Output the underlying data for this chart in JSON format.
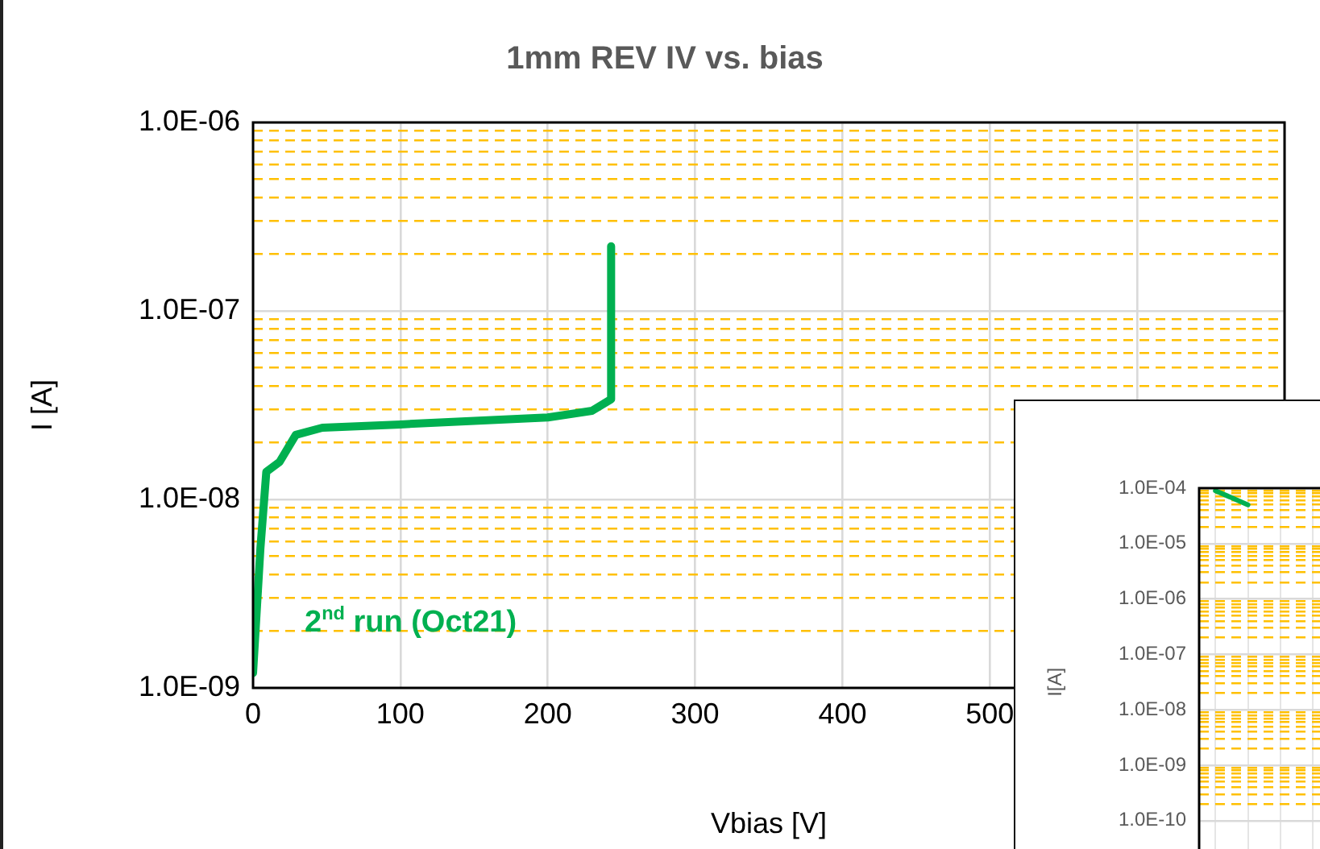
{
  "chart_data": [
    {
      "type": "line",
      "title": "1mm REV IV vs. bias",
      "xlabel": "Vbias [V]",
      "ylabel": "I [A]",
      "log": "y",
      "grid": true,
      "legend": false,
      "marker": "none",
      "line_style": "solid",
      "xlim": [
        0,
        700
      ],
      "xticks": [
        0,
        100,
        200,
        300,
        400,
        500,
        {
          "value": 600,
          "label": null
        },
        {
          "value": 700,
          "label": null
        }
      ],
      "ylim": [
        1e-09,
        1e-06
      ],
      "yticks": [
        {
          "value": 1e-09,
          "label": "1.0E-09"
        },
        {
          "value": 2e-09,
          "label": null
        },
        {
          "value": 3e-09,
          "label": null
        },
        {
          "value": 4e-09,
          "label": null
        },
        {
          "value": 5e-09,
          "label": null
        },
        {
          "value": 6e-09,
          "label": null
        },
        {
          "value": 7e-09,
          "label": null
        },
        {
          "value": 8e-09,
          "label": null
        },
        {
          "value": 9e-09,
          "label": null
        },
        {
          "value": 1e-08,
          "label": "1.0E-08"
        },
        {
          "value": 2e-08,
          "label": null
        },
        {
          "value": 3e-08,
          "label": null
        },
        {
          "value": 4e-08,
          "label": null
        },
        {
          "value": 5e-08,
          "label": null
        },
        {
          "value": 6e-08,
          "label": null
        },
        {
          "value": 7e-08,
          "label": null
        },
        {
          "value": 8e-08,
          "label": null
        },
        {
          "value": 9e-08,
          "label": null
        },
        {
          "value": 1e-07,
          "label": "1.0E-07"
        },
        {
          "value": 2e-07,
          "label": null
        },
        {
          "value": 3e-07,
          "label": null
        },
        {
          "value": 4e-07,
          "label": null
        },
        {
          "value": 5e-07,
          "label": null
        },
        {
          "value": 6e-07,
          "label": null
        },
        {
          "value": 7e-07,
          "label": null
        },
        {
          "value": 8e-07,
          "label": null
        },
        {
          "value": 9e-07,
          "label": null
        },
        {
          "value": 1e-06,
          "label": "1.0E-06"
        }
      ],
      "series": [
        {
          "name": "2$^{nd}$ run (Oct21)",
          "color": "#00b050",
          "x": [
            0,
            5,
            9,
            18,
            29,
            47,
            100,
            200,
            230,
            243,
            243
          ],
          "values": [
            1.2e-09,
            5.5e-09,
            1.4e-08,
            1.58e-08,
            2.2e-08,
            2.4e-08,
            2.5e-08,
            2.72e-08,
            2.95e-08,
            3.4e-08,
            2.2e-07
          ]
        }
      ]
    },
    {
      "type": "line",
      "ylabel": "I[A]",
      "log": "y",
      "grid": true,
      "legend": false,
      "marker": "none",
      "tick_labels": "y",
      "categories": [
        null,
        null,
        null,
        null,
        null,
        null,
        null,
        null,
        null,
        null,
        null,
        null,
        null,
        null,
        null,
        null,
        null,
        null,
        null,
        null,
        null,
        null,
        null,
        null,
        null,
        null,
        null,
        null,
        null,
        null
      ],
      "ylim": [
        1e-11,
        0.0001
      ],
      "yticks": [
        {
          "value": 1e-10,
          "label": "1.0E-10"
        },
        {
          "value": 2e-10,
          "label": null
        },
        {
          "value": 3e-10,
          "label": null
        },
        {
          "value": 4e-10,
          "label": null
        },
        {
          "value": 5e-10,
          "label": null
        },
        {
          "value": 6e-10,
          "label": null
        },
        {
          "value": 7e-10,
          "label": null
        },
        {
          "value": 8e-10,
          "label": null
        },
        {
          "value": 9e-10,
          "label": null
        },
        {
          "value": 1e-09,
          "label": "1.0E-09"
        },
        {
          "value": 2e-09,
          "label": null
        },
        {
          "value": 3e-09,
          "label": null
        },
        {
          "value": 4e-09,
          "label": null
        },
        {
          "value": 5e-09,
          "label": null
        },
        {
          "value": 6e-09,
          "label": null
        },
        {
          "value": 7e-09,
          "label": null
        },
        {
          "value": 8e-09,
          "label": null
        },
        {
          "value": 9e-09,
          "label": null
        },
        {
          "value": 1e-08,
          "label": "1.0E-08"
        },
        {
          "value": 2e-08,
          "label": null
        },
        {
          "value": 3e-08,
          "label": null
        },
        {
          "value": 4e-08,
          "label": null
        },
        {
          "value": 5e-08,
          "label": null
        },
        {
          "value": 6e-08,
          "label": null
        },
        {
          "value": 7e-08,
          "label": null
        },
        {
          "value": 8e-08,
          "label": null
        },
        {
          "value": 9e-08,
          "label": null
        },
        {
          "value": 1e-07,
          "label": "1.0E-07"
        },
        {
          "value": 2e-07,
          "label": null
        },
        {
          "value": 3e-07,
          "label": null
        },
        {
          "value": 4e-07,
          "label": null
        },
        {
          "value": 5e-07,
          "label": null
        },
        {
          "value": 6e-07,
          "label": null
        },
        {
          "value": 7e-07,
          "label": null
        },
        {
          "value": 8e-07,
          "label": null
        },
        {
          "value": 9e-07,
          "label": null
        },
        {
          "value": 1e-06,
          "label": "1.0E-06"
        },
        {
          "value": 2e-06,
          "label": null
        },
        {
          "value": 3e-06,
          "label": null
        },
        {
          "value": 4e-06,
          "label": null
        },
        {
          "value": 5e-06,
          "label": null
        },
        {
          "value": 6e-06,
          "label": null
        },
        {
          "value": 7e-06,
          "label": null
        },
        {
          "value": 8e-06,
          "label": null
        },
        {
          "value": 9e-06,
          "label": null
        },
        {
          "value": 1e-05,
          "label": "1.0E-05"
        },
        {
          "value": 2e-05,
          "label": null
        },
        {
          "value": 3e-05,
          "label": null
        },
        {
          "value": 4e-05,
          "label": null
        },
        {
          "value": 5e-05,
          "label": null
        },
        {
          "value": 6e-05,
          "label": null
        },
        {
          "value": 7e-05,
          "label": null
        },
        {
          "value": 8e-05,
          "label": null
        },
        {
          "value": 9e-05,
          "label": null
        },
        {
          "value": 0.0001,
          "label": "1.0E-04"
        }
      ],
      "series": [
        {
          "color": "#00b050",
          "values": [
            9e-05,
            5e-05,
            null,
            null,
            null,
            null,
            null,
            null,
            null,
            null,
            null,
            null,
            null,
            null,
            null,
            null,
            null,
            null,
            null,
            null,
            null,
            null,
            null,
            null,
            null,
            null,
            null,
            null,
            null,
            null
          ]
        }
      ]
    }
  ]
}
